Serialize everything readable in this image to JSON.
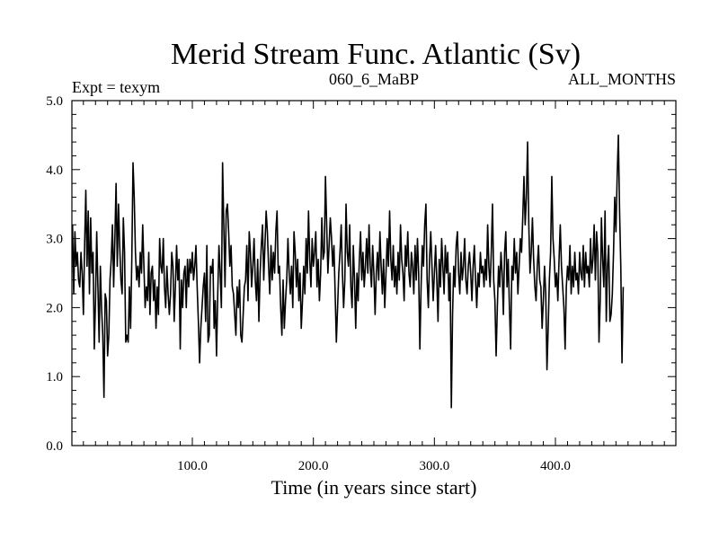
{
  "chart_data": {
    "type": "line",
    "title": "Merid Stream Func. Atlantic (Sv)",
    "subtitle_left": "Expt = texym",
    "subtitle_center": "060_6_MaBP",
    "subtitle_right": "ALL_MONTHS",
    "xlabel": "Time (in years since start)",
    "ylabel": "",
    "xlim": [
      0.5,
      499.5
    ],
    "ylim": [
      0.0,
      5.0
    ],
    "x_ticks": [
      100,
      200,
      300,
      400
    ],
    "x_tick_labels": [
      "100.0",
      "200.0",
      "300.0",
      "400.0"
    ],
    "y_ticks": [
      0,
      1,
      2,
      3,
      4,
      5
    ],
    "y_tick_labels": [
      "0.0",
      "1.0",
      "2.0",
      "3.0",
      "4.0",
      "5.0"
    ],
    "grid": false,
    "line_color": "#000000",
    "series": [
      {
        "x_start": 1,
        "x_step": 1,
        "values": [
          3.2,
          2.2,
          3.1,
          2.6,
          2.8,
          2.4,
          2.3,
          2.8,
          2.5,
          1.9,
          2.9,
          3.7,
          2.6,
          3.4,
          2.2,
          3.3,
          2.5,
          2.8,
          1.4,
          2.1,
          3.1,
          2.3,
          1.5,
          2.6,
          2.0,
          1.6,
          0.7,
          2.2,
          2.1,
          1.3,
          1.6,
          2.4,
          2.7,
          3.2,
          2.3,
          3.0,
          3.8,
          2.6,
          3.5,
          2.9,
          2.4,
          2.2,
          3.3,
          2.8,
          1.5,
          1.6,
          1.5,
          2.3,
          1.7,
          2.7,
          4.1,
          3.6,
          2.8,
          2.4,
          2.6,
          2.3,
          2.8,
          2.5,
          3.2,
          2.6,
          2.0,
          2.3,
          2.1,
          2.8,
          1.9,
          2.5,
          2.6,
          2.1,
          2.4,
          1.7,
          2.3,
          1.9,
          3.0,
          2.6,
          2.5,
          3.0,
          2.3,
          2.0,
          2.6,
          2.2,
          1.9,
          2.2,
          2.8,
          2.6,
          1.8,
          2.3,
          2.9,
          2.4,
          2.7,
          1.4,
          2.4,
          2.0,
          2.5,
          2.6,
          2.0,
          2.7,
          2.3,
          2.7,
          2.5,
          2.8,
          2.4,
          2.6,
          2.9,
          2.3,
          1.8,
          1.2,
          1.7,
          2.0,
          2.3,
          2.5,
          1.8,
          2.9,
          1.5,
          1.6,
          2.6,
          2.5,
          2.7,
          1.7,
          2.1,
          1.3,
          2.2,
          2.9,
          2.5,
          2.0,
          4.1,
          3.2,
          2.3,
          3.4,
          3.5,
          3.1,
          2.6,
          2.9,
          2.3,
          2.2,
          1.9,
          1.6,
          2.3,
          2.0,
          2.4,
          1.6,
          1.5,
          1.9,
          2.3,
          2.4,
          2.9,
          2.1,
          3.1,
          2.8,
          2.3,
          2.6,
          3.0,
          2.4,
          2.1,
          2.7,
          1.8,
          2.5,
          2.9,
          3.2,
          2.4,
          2.9,
          3.4,
          3.1,
          2.6,
          2.2,
          2.9,
          2.4,
          2.8,
          2.5,
          3.1,
          3.4,
          2.5,
          2.6,
          2.0,
          1.6,
          2.4,
          1.7,
          2.1,
          2.4,
          3.0,
          2.5,
          2.2,
          2.6,
          2.0,
          3.1,
          2.8,
          2.3,
          2.7,
          2.1,
          2.5,
          1.7,
          2.1,
          2.6,
          2.2,
          3.0,
          2.5,
          3.4,
          2.7,
          2.3,
          3.0,
          2.6,
          2.8,
          3.1,
          2.3,
          2.7,
          2.1,
          2.5,
          3.3,
          2.7,
          2.8,
          3.9,
          3.2,
          2.5,
          2.9,
          3.3,
          3.0,
          2.6,
          2.9,
          2.2,
          1.5,
          2.0,
          2.5,
          2.8,
          3.2,
          2.5,
          2.0,
          2.4,
          3.5,
          2.8,
          2.6,
          3.2,
          2.3,
          2.0,
          2.9,
          2.4,
          1.7,
          2.5,
          2.1,
          2.7,
          3.1,
          2.4,
          2.8,
          2.3,
          2.6,
          3.0,
          2.5,
          3.2,
          2.6,
          2.3,
          2.9,
          2.5,
          1.9,
          2.5,
          2.8,
          2.4,
          3.1,
          2.6,
          2.2,
          2.7,
          2.0,
          2.5,
          3.0,
          2.6,
          3.4,
          2.7,
          2.4,
          2.9,
          2.3,
          2.6,
          2.2,
          2.8,
          2.4,
          3.2,
          2.7,
          2.5,
          2.1,
          2.9,
          2.6,
          3.1,
          2.5,
          2.3,
          2.8,
          2.6,
          2.2,
          2.9,
          2.4,
          3.0,
          2.5,
          1.4,
          2.3,
          2.9,
          2.6,
          3.2,
          3.5,
          2.4,
          2.0,
          2.7,
          3.1,
          2.6,
          2.1,
          2.5,
          2.9,
          2.4,
          1.8,
          2.7,
          2.3,
          3.0,
          2.6,
          2.2,
          2.9,
          2.5,
          2.8,
          2.1,
          2.5,
          0.55,
          1.9,
          2.6,
          2.3,
          2.9,
          3.1,
          2.5,
          2.2,
          2.8,
          2.4,
          2.6,
          3.0,
          2.4,
          2.2,
          2.6,
          2.8,
          2.5,
          2.1,
          2.6,
          2.9,
          2.4,
          2.0,
          2.5,
          2.3,
          2.8,
          2.5,
          2.6,
          2.3,
          2.7,
          2.4,
          3.2,
          2.6,
          2.3,
          2.8,
          3.5,
          2.4,
          2.1,
          1.3,
          2.0,
          2.6,
          2.3,
          2.8,
          2.5,
          1.9,
          2.8,
          3.1,
          2.3,
          2.7,
          2.0,
          1.4,
          2.6,
          2.4,
          3.0,
          2.5,
          2.8,
          2.2,
          2.6,
          3.0,
          2.8,
          3.3,
          3.9,
          3.2,
          3.6,
          4.4,
          3.2,
          2.5,
          2.8,
          3.3,
          2.7,
          2.3,
          2.1,
          2.6,
          2.9,
          2.4,
          2.3,
          1.7,
          2.1,
          2.6,
          2.2,
          1.1,
          1.7,
          2.4,
          2.8,
          3.9,
          3.0,
          2.7,
          2.3,
          2.5,
          2.1,
          2.7,
          3.2,
          2.6,
          2.3,
          2.0,
          1.4,
          2.3,
          2.6,
          2.4,
          2.9,
          2.2,
          2.6,
          2.3,
          2.8,
          2.4,
          2.5,
          2.2,
          2.8,
          2.5,
          2.4,
          2.9,
          2.3,
          2.8,
          2.5,
          2.6,
          2.3,
          3.0,
          2.5,
          2.7,
          3.2,
          2.4,
          3.1,
          2.8,
          1.5,
          2.1,
          3.3,
          2.7,
          2.3,
          3.4,
          1.8,
          2.6,
          2.9,
          1.8,
          1.9,
          2.2,
          2.8,
          3.6,
          3.1,
          3.9,
          4.5,
          3.4,
          2.6,
          1.2,
          2.3
        ]
      }
    ]
  }
}
